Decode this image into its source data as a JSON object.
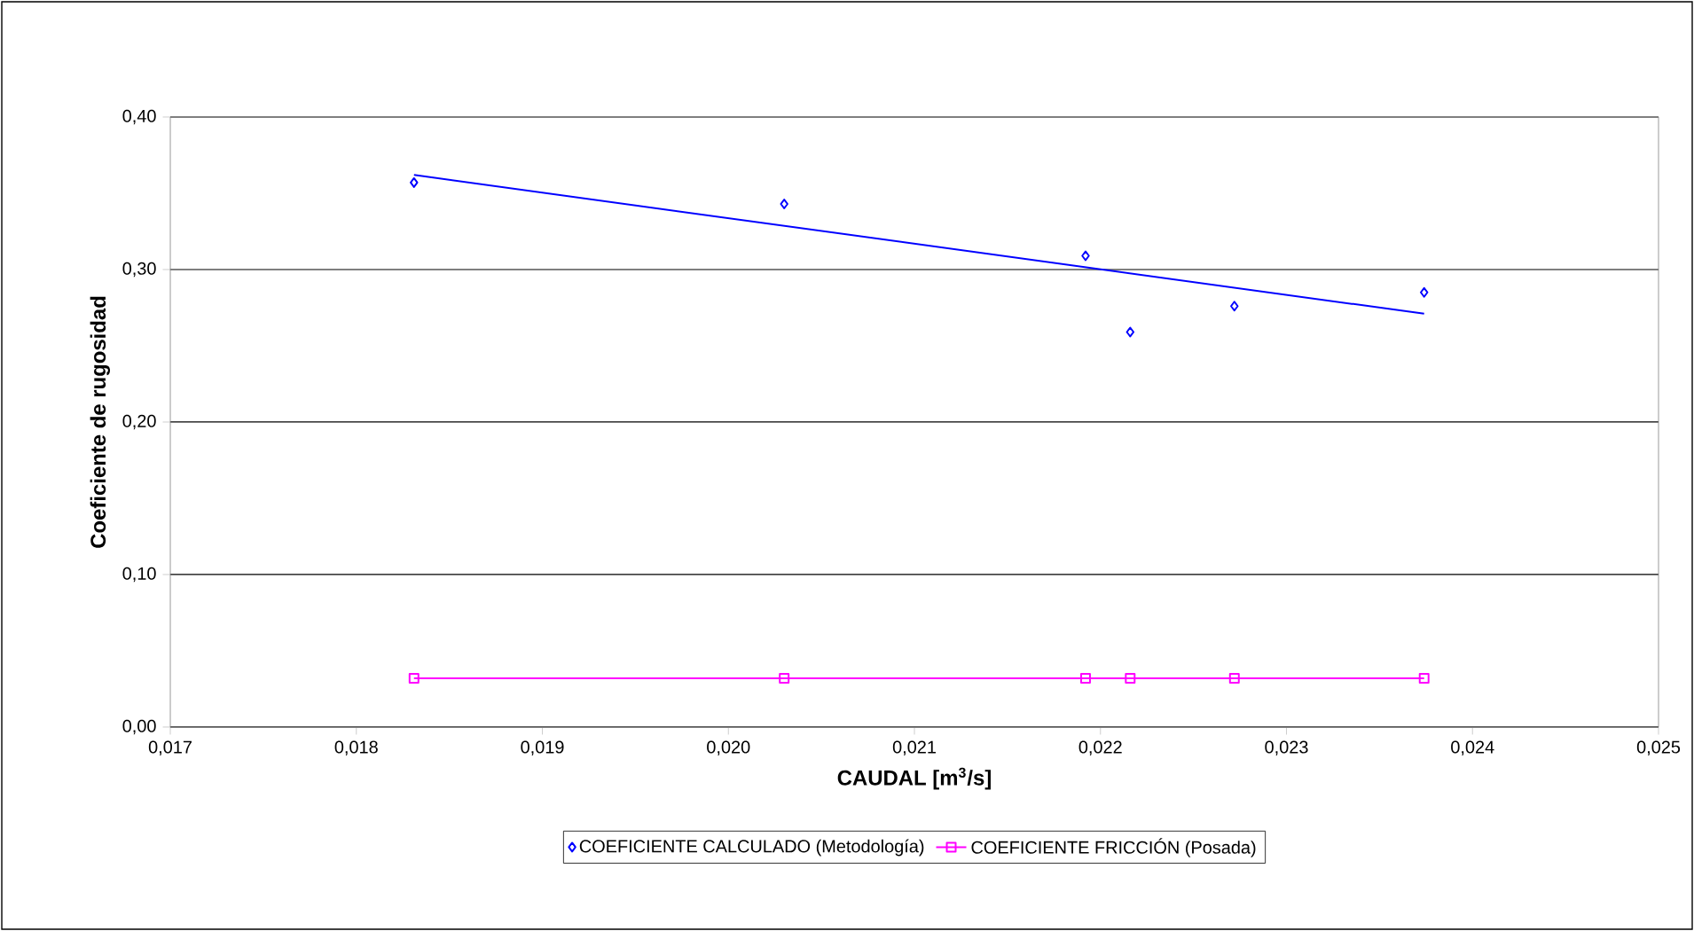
{
  "chart_data": {
    "type": "scatter",
    "xlabel": "CAUDAL [m$^{3}$/s]",
    "ylabel": "Coeficiente de rugosidad",
    "xlim": [
      0.017,
      0.025
    ],
    "ylim": [
      0,
      0.4
    ],
    "xticks": [
      {
        "value": 0.017,
        "label": "0,017"
      },
      {
        "value": 0.018,
        "label": "0,018"
      },
      {
        "value": 0.019,
        "label": "0,019"
      },
      {
        "value": 0.02,
        "label": "0,020"
      },
      {
        "value": 0.021,
        "label": "0,021"
      },
      {
        "value": 0.022,
        "label": "0,022"
      },
      {
        "value": 0.023,
        "label": "0,023"
      },
      {
        "value": 0.024,
        "label": "0,024"
      },
      {
        "value": 0.025,
        "label": "0,025"
      }
    ],
    "yticks": [
      {
        "value": 0,
        "label": "0,00"
      },
      {
        "value": 0.1,
        "label": "0,10"
      },
      {
        "value": 0.2,
        "label": "0,20"
      },
      {
        "value": 0.3,
        "label": "0,30"
      },
      {
        "value": 0.4,
        "label": "0,40"
      }
    ],
    "grid": "y",
    "legend": "bottom",
    "series": [
      {
        "name": "COEFICIENTE CALCULADO (Metodología)",
        "marker": "diamond",
        "color": "#0000ff",
        "x": [
          0.01831,
          0.0203,
          0.02192,
          0.02216,
          0.02272,
          0.02374
        ],
        "values": [
          0.357,
          0.343,
          0.309,
          0.259,
          0.276,
          0.285
        ]
      },
      {
        "name": "COEFICIENTE FRICCIÓN (Posada)",
        "type": "line",
        "marker": "square",
        "color": "#ff00ff",
        "x": [
          0.01831,
          0.0203,
          0.02192,
          0.02216,
          0.02272,
          0.02374
        ],
        "values": [
          0.032,
          0.032,
          0.032,
          0.032,
          0.032,
          0.032
        ]
      },
      {
        "type": "line",
        "marker": "none",
        "color": "#0000ff",
        "x": [
          0.01831,
          0.02374
        ],
        "values": [
          0.362,
          0.271
        ]
      }
    ]
  }
}
